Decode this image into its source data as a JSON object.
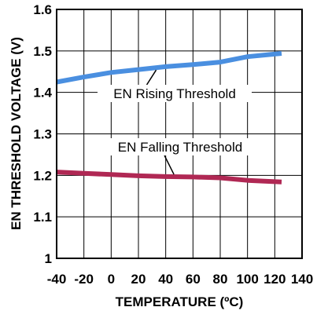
{
  "chart_data": {
    "type": "line",
    "title": "",
    "xlabel": "TEMPERATURE (ºC)",
    "ylabel": "EN THRESHOLD VOLTAGE (V)",
    "xlim": [
      -40,
      140
    ],
    "ylim": [
      1.0,
      1.6
    ],
    "x_ticks": [
      "-40",
      "-20",
      "0",
      "20",
      "40",
      "60",
      "80",
      "100",
      "120",
      "140"
    ],
    "y_ticks": [
      "1",
      "1.1",
      "1.2",
      "1.3",
      "1.4",
      "1.5",
      "1.6"
    ],
    "grid": true,
    "series": [
      {
        "name": "EN Rising Threshold",
        "color": "#4a8fe0",
        "x": [
          -40,
          -20,
          0,
          20,
          40,
          60,
          80,
          100,
          125
        ],
        "y": [
          1.425,
          1.437,
          1.448,
          1.455,
          1.462,
          1.467,
          1.473,
          1.486,
          1.494
        ]
      },
      {
        "name": "EN Falling Threshold",
        "color": "#b02854",
        "x": [
          -40,
          -20,
          0,
          20,
          40,
          60,
          80,
          100,
          125
        ],
        "y": [
          1.208,
          1.205,
          1.202,
          1.199,
          1.197,
          1.196,
          1.194,
          1.188,
          1.184
        ]
      }
    ],
    "annotations": [
      {
        "text": "EN Rising Threshold",
        "series": 0,
        "point_x": 33
      },
      {
        "text": "EN Falling Threshold",
        "series": 1,
        "point_x": 46
      }
    ]
  }
}
